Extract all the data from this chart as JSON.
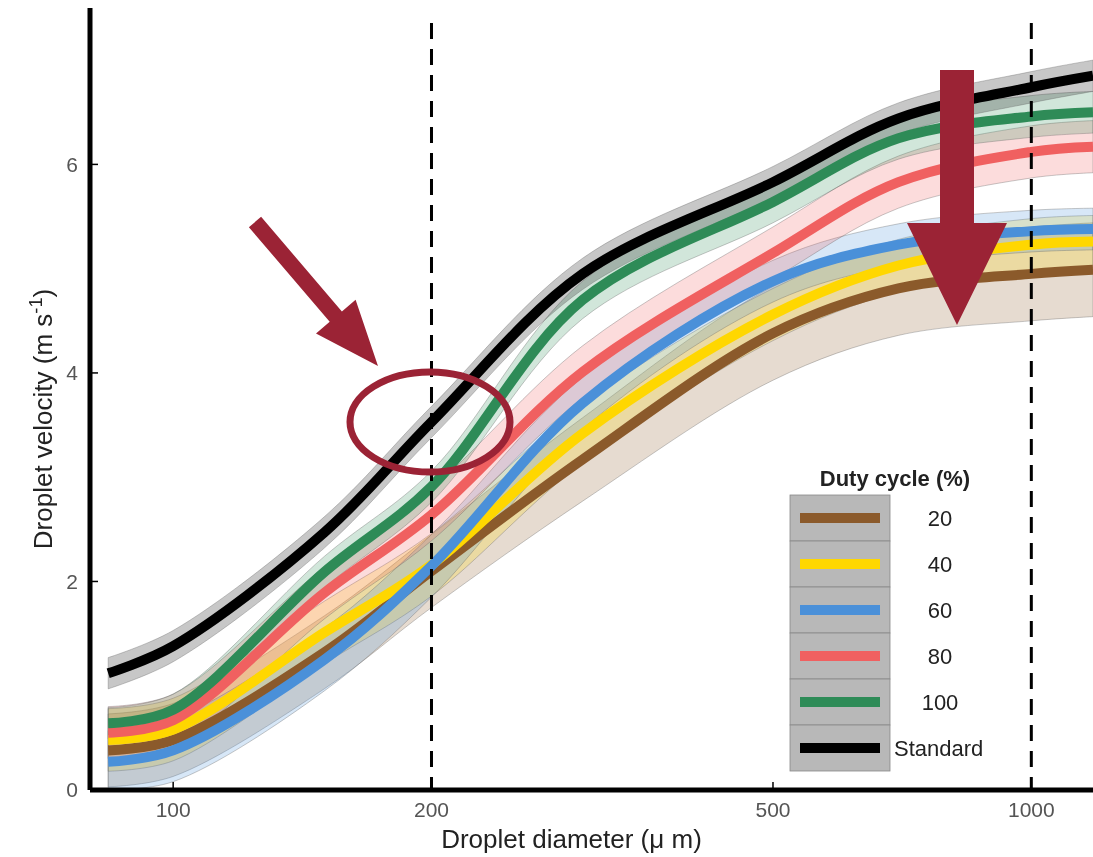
{
  "chart_data": {
    "type": "line",
    "xlabel": "Droplet diameter (μ m)",
    "ylabel": "Droplet velocity (m s$^{-1}$)",
    "legend_title": "Duty cycle (%)",
    "log": "x",
    "xlim": [
      80,
      1180
    ],
    "xticks": [
      100,
      200,
      500,
      1000
    ],
    "ylim": [
      0,
      7.5
    ],
    "yticks": [
      0,
      2,
      4,
      6
    ],
    "grid": false,
    "legend": "bottom right",
    "line_style": "solid",
    "marker": "none",
    "x": [
      84,
      100,
      150,
      200,
      300,
      500,
      700,
      1000,
      1180
    ],
    "ref_lines": [
      {
        "axis": "x",
        "value": 200,
        "color": "#000000",
        "line_style": "dashed"
      },
      {
        "axis": "x",
        "value": 1000,
        "color": "#000000",
        "line_style": "dashed"
      }
    ],
    "series": [
      {
        "name": "20",
        "color": "#8b5a2b",
        "values": [
          0.38,
          0.48,
          1.32,
          2.1,
          3.17,
          4.38,
          4.81,
          4.95,
          4.99
        ],
        "lower": [
          0.03,
          0.13,
          0.97,
          1.75,
          2.77,
          3.93,
          4.36,
          4.5,
          4.54
        ],
        "upper": [
          0.73,
          0.83,
          1.67,
          2.45,
          3.57,
          4.83,
          5.26,
          5.4,
          5.44
        ]
      },
      {
        "name": "40",
        "color": "#ffd700",
        "values": [
          0.48,
          0.58,
          1.51,
          2.16,
          3.42,
          4.56,
          5.03,
          5.23,
          5.26
        ],
        "lower": [
          0.18,
          0.28,
          1.21,
          1.86,
          3.14,
          4.31,
          4.78,
          4.98,
          5.01
        ],
        "upper": [
          0.78,
          0.88,
          1.81,
          2.46,
          3.7,
          4.81,
          5.28,
          5.48,
          5.51
        ]
      },
      {
        "name": "60",
        "color": "#4a90d9",
        "values": [
          0.27,
          0.38,
          1.25,
          2.15,
          3.71,
          4.88,
          5.23,
          5.36,
          5.38
        ],
        "lower": [
          0.0,
          0.08,
          0.95,
          1.85,
          3.46,
          4.68,
          5.03,
          5.16,
          5.18
        ],
        "upper": [
          0.57,
          0.68,
          1.55,
          2.45,
          3.96,
          5.08,
          5.43,
          5.56,
          5.58
        ]
      },
      {
        "name": "80",
        "color": "#f06060",
        "values": [
          0.55,
          0.67,
          1.89,
          2.64,
          4.01,
          5.15,
          5.83,
          6.12,
          6.17
        ],
        "lower": [
          0.3,
          0.42,
          1.64,
          2.39,
          3.76,
          4.9,
          5.58,
          5.87,
          5.92
        ],
        "upper": [
          0.8,
          0.92,
          2.14,
          2.89,
          4.26,
          5.4,
          6.08,
          6.37,
          6.42
        ]
      },
      {
        "name": "100",
        "color": "#2e8b57",
        "values": [
          0.64,
          0.77,
          2.09,
          2.91,
          4.7,
          5.64,
          6.25,
          6.46,
          6.5
        ],
        "lower": [
          0.49,
          0.62,
          1.94,
          2.76,
          4.52,
          5.44,
          6.05,
          6.26,
          6.3
        ],
        "upper": [
          0.79,
          0.92,
          2.24,
          3.06,
          4.88,
          5.84,
          6.45,
          6.66,
          6.7
        ]
      },
      {
        "name": "Standard",
        "color": "#000000",
        "values": [
          1.12,
          1.38,
          2.47,
          3.53,
          4.95,
          5.83,
          6.44,
          6.74,
          6.85
        ],
        "lower": [
          0.97,
          1.23,
          2.32,
          3.38,
          4.8,
          5.68,
          6.29,
          6.59,
          6.7
        ],
        "upper": [
          1.27,
          1.53,
          2.62,
          3.68,
          5.1,
          5.98,
          6.59,
          6.89,
          7.0
        ]
      }
    ]
  }
}
